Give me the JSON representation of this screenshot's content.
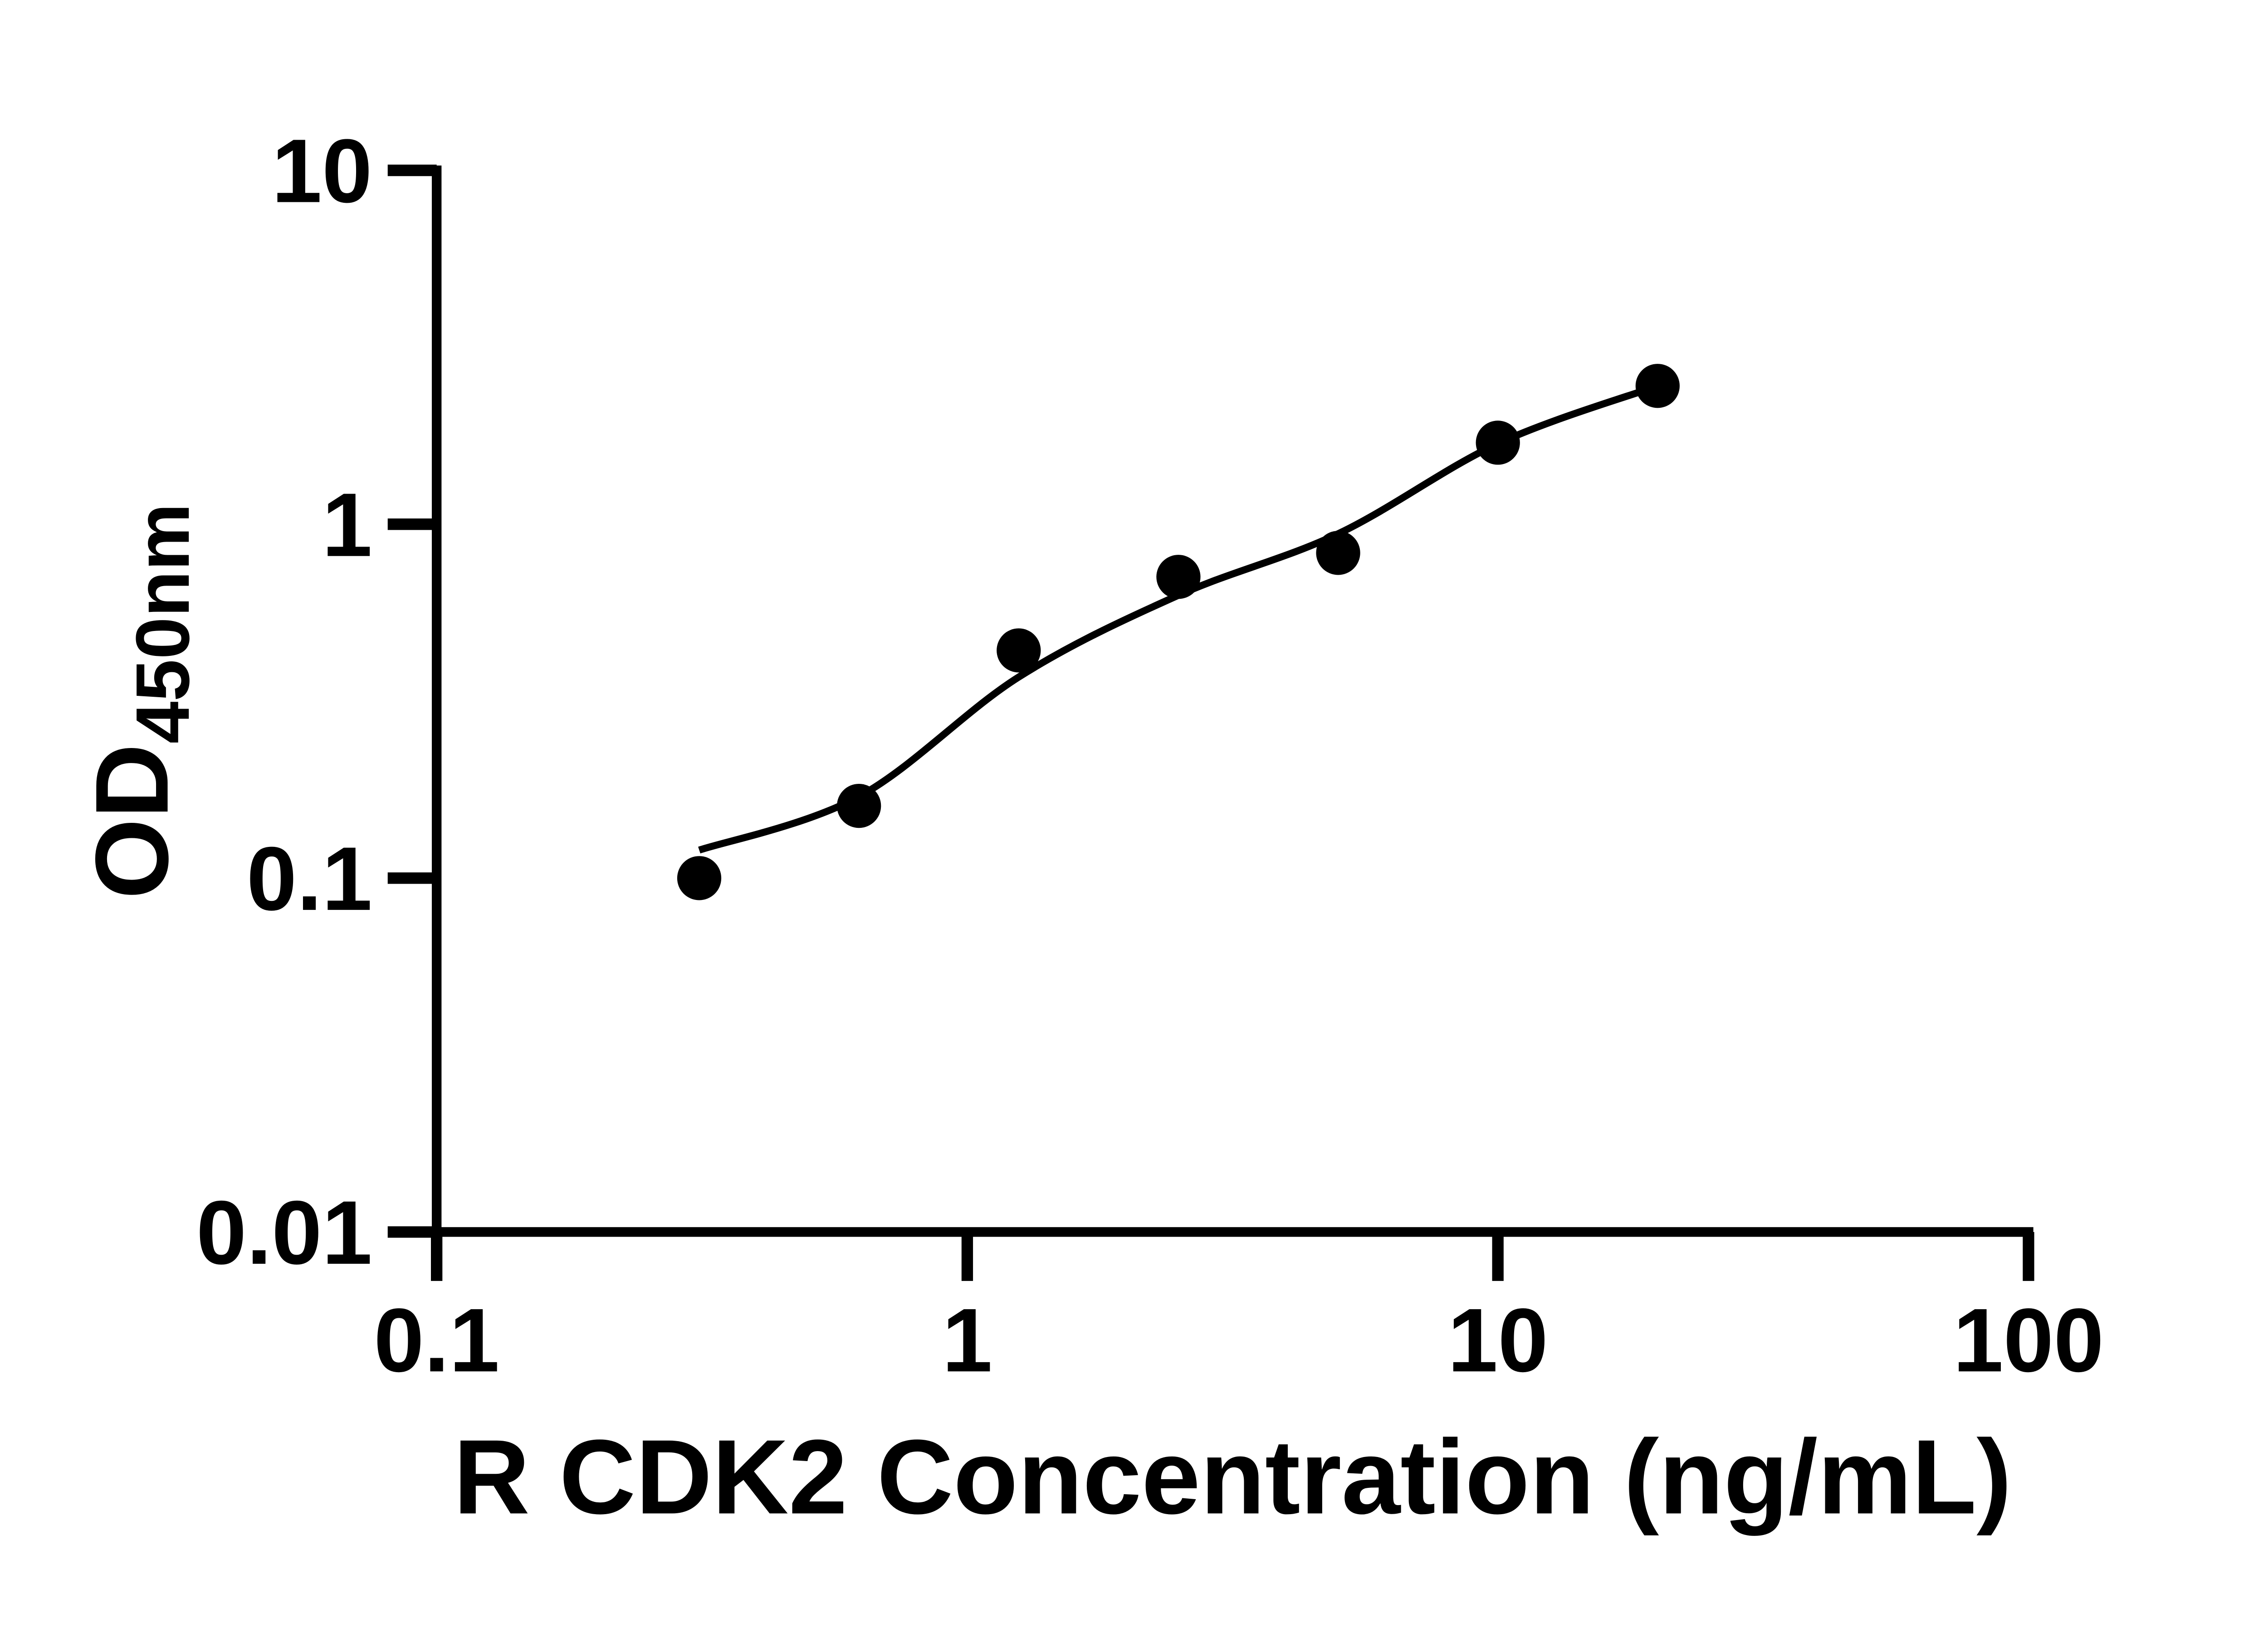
{
  "figure": {
    "kind": "ELISA standard curve figure",
    "background_color": "#ffffff"
  },
  "chart_data": {
    "type": "scatter",
    "title": "",
    "xlabel": "R CDK2 Concentration (ng/mL)",
    "ylabel_main": "OD",
    "ylabel_subscript": "450nm",
    "x_scale": "log10",
    "y_scale": "log10",
    "xlim": [
      0.1,
      100
    ],
    "ylim": [
      0.01,
      10
    ],
    "grid": false,
    "legend_position": "none",
    "x_ticks": [
      {
        "value": 0.1,
        "label": "0.1"
      },
      {
        "value": 1,
        "label": "1"
      },
      {
        "value": 10,
        "label": "10"
      },
      {
        "value": 100,
        "label": "100"
      }
    ],
    "y_ticks": [
      {
        "value": 0.01,
        "label": "0.01"
      },
      {
        "value": 0.1,
        "label": "0.1"
      },
      {
        "value": 1,
        "label": "1"
      },
      {
        "value": 10,
        "label": "10"
      }
    ],
    "series": [
      {
        "name": "standard points",
        "marker": "filled-circle",
        "color": "#000000",
        "points": [
          {
            "x": 0.3125,
            "y": 0.1
          },
          {
            "x": 0.625,
            "y": 0.16
          },
          {
            "x": 1.25,
            "y": 0.44
          },
          {
            "x": 2.5,
            "y": 0.71
          },
          {
            "x": 5,
            "y": 0.83
          },
          {
            "x": 10,
            "y": 1.7
          },
          {
            "x": 20,
            "y": 2.46
          }
        ]
      }
    ],
    "fit_curve": {
      "name": "fitted standard curve",
      "color": "#000000",
      "points": [
        {
          "x": 0.3125,
          "y": 0.12
        },
        {
          "x": 0.625,
          "y": 0.17
        },
        {
          "x": 1.25,
          "y": 0.37
        },
        {
          "x": 2.5,
          "y": 0.63
        },
        {
          "x": 5,
          "y": 0.94
        },
        {
          "x": 10,
          "y": 1.69
        },
        {
          "x": 20,
          "y": 2.46
        }
      ]
    },
    "colors": {
      "axis": "#000000",
      "text": "#000000",
      "marker": "#000000",
      "curve": "#000000",
      "background": "#ffffff"
    }
  }
}
